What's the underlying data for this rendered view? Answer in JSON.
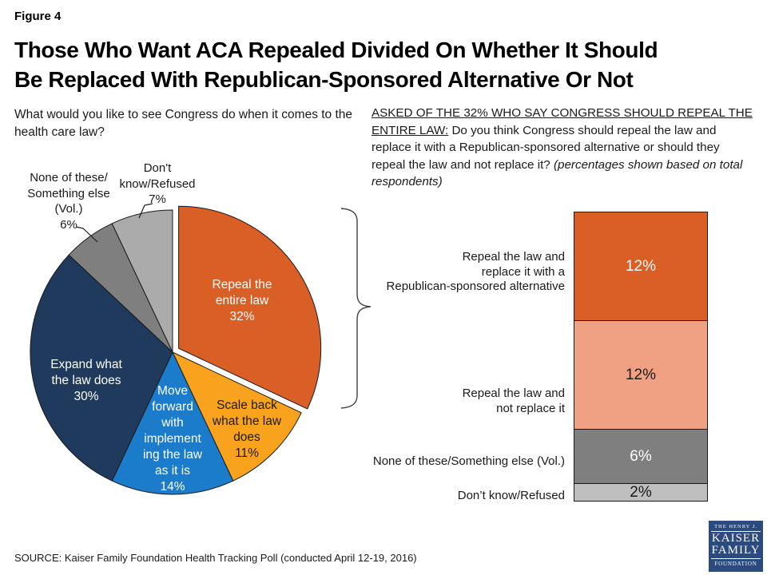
{
  "figure_label": "Figure 4",
  "title": {
    "line1": "Those Who Want ACA Repealed Divided On Whether It Should",
    "line2": "Be Replaced With Republican-Sponsored Alternative Or Not"
  },
  "source": "SOURCE: Kaiser Family Foundation Health Tracking Poll (conducted April 12-19, 2016)",
  "logo": {
    "line1": "THE HENRY J.",
    "line2": "KAISER",
    "line3": "FAMILY",
    "line4": "FOUNDATION"
  },
  "chart_data": [
    {
      "type": "pie",
      "question": "What would you like to see Congress do when it comes to the health care law?",
      "unit": "%",
      "start_angle_deg_from_top": 0,
      "clockwise": true,
      "slices": [
        {
          "label": "Repeal the entire law",
          "value": 32,
          "color": "#D95F27",
          "text_color": "#FFFFFF",
          "exploded": true,
          "label_block": "Repeal the\nentire law\n32%"
        },
        {
          "label": "Scale back what the law does",
          "value": 11,
          "color": "#F9A21D",
          "text_color": "#1A1A1A",
          "exploded": false,
          "label_block": "Scale back\nwhat the law\ndoes\n11%"
        },
        {
          "label": "Move forward with implementing the law as it is",
          "value": 14,
          "color": "#1B7CCB",
          "text_color": "#FFFFFF",
          "exploded": false,
          "label_block": "Move\nforward\nwith\nimplement\ning the law\nas it is\n14%"
        },
        {
          "label": "Expand what the law does",
          "value": 30,
          "color": "#1F3A5C",
          "text_color": "#FFFFFF",
          "exploded": false,
          "label_block": "Expand what\nthe law does\n30%"
        },
        {
          "label": "None of these/Something else (Vol.)",
          "value": 6,
          "color": "#7F7F7F",
          "text_color": "#1A1A1A",
          "exploded": false,
          "outside": true,
          "label_block": "None of these/\nSomething else\n(Vol.)\n6%"
        },
        {
          "label": "Don't know/Refused",
          "value": 7,
          "color": "#ABABAB",
          "text_color": "#1A1A1A",
          "exploded": false,
          "outside": true,
          "label_block": "Don't\nknow/Refused\n7%"
        }
      ]
    },
    {
      "type": "stacked-bar",
      "question_prefix": "ASKED OF THE 32% WHO SAY CONGRESS SHOULD REPEAL THE ENTIRE LAW:",
      "question_main": " Do you think Congress should repeal the law and replace it with a Republican-sponsored alternative or should they repeal the law and not replace it? ",
      "question_note": "(percentages shown based on total respondents)",
      "total_of_bar": 32,
      "unit": "% of total respondents",
      "segments": [
        {
          "label": "Repeal the law and replace it with a Republican-sponsored alternative",
          "label_block": "Repeal the law and\nreplace it with a\nRepublican-sponsored alternative",
          "value": 12,
          "display": "12%",
          "color": "#D95F27",
          "text_color": "#FFFFFF"
        },
        {
          "label": "Repeal the law and not replace it",
          "label_block": "Repeal the law and\nnot replace it",
          "value": 12,
          "display": "12%",
          "color": "#F0A183",
          "text_color": "#1A1A1A"
        },
        {
          "label": "None of these/Something else (Vol.)",
          "label_block": "None of these/Something else (Vol.)",
          "value": 6,
          "display": "6%",
          "color": "#7F7F7F",
          "text_color": "#FFFFFF"
        },
        {
          "label": "Don’t know/Refused",
          "label_block": "Don’t know/Refused",
          "value": 2,
          "display": "2%",
          "color": "#BFBFBF",
          "text_color": "#1A1A1A"
        }
      ]
    }
  ]
}
